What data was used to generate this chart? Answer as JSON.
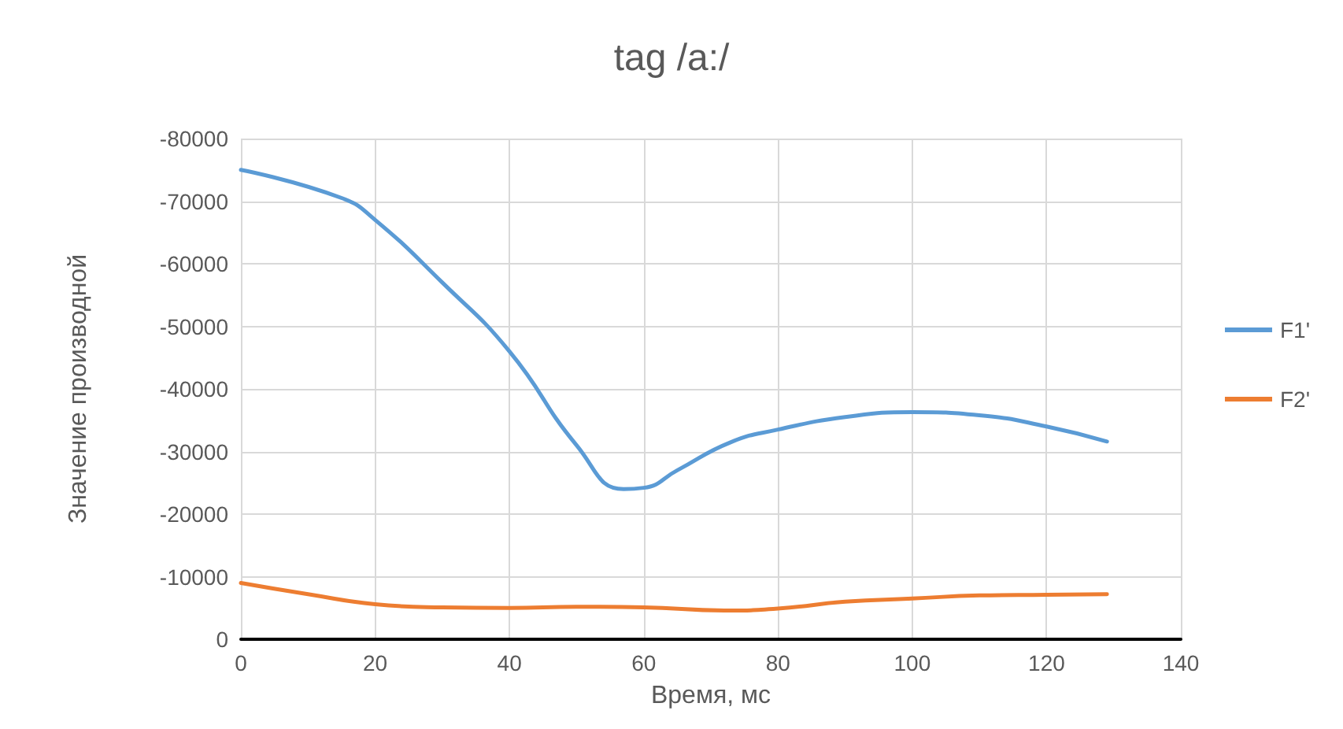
{
  "chart_data": {
    "type": "line",
    "title": "tag /a:/",
    "xlabel": "Время, мс",
    "ylabel": "Значение производной",
    "xlim": [
      0,
      140
    ],
    "xticks": [
      0,
      20,
      40,
      60,
      80,
      100,
      120,
      140
    ],
    "ylim": [
      0,
      -80000
    ],
    "yticks": [
      0,
      -10000,
      -20000,
      -30000,
      -40000,
      -50000,
      -60000,
      -70000,
      -80000
    ],
    "grid": true,
    "legend": "right",
    "marker": "none",
    "line_style": "solid",
    "series": [
      {
        "name": "F1'",
        "color": "#5b9bd5",
        "x": [
          0,
          15,
          20,
          30,
          40,
          50,
          57,
          60,
          65,
          73,
          80,
          90,
          100,
          110,
          120,
          129
        ],
        "values": [
          -75000,
          -70500,
          -67000,
          -57000,
          -46000,
          -31000,
          -24000,
          -24200,
          -27000,
          -31500,
          -33500,
          -35500,
          -36300,
          -35800,
          -34000,
          -31600
        ]
      },
      {
        "name": "F2'",
        "color": "#ed7d31",
        "x": [
          0,
          10,
          20,
          30,
          40,
          50,
          60,
          72,
          80,
          90,
          100,
          110,
          120,
          129
        ],
        "values": [
          -9000,
          -7200,
          -5600,
          -5100,
          -5000,
          -5200,
          -5100,
          -4600,
          -4900,
          -6000,
          -6500,
          -7000,
          -7100,
          -7200
        ]
      }
    ]
  }
}
